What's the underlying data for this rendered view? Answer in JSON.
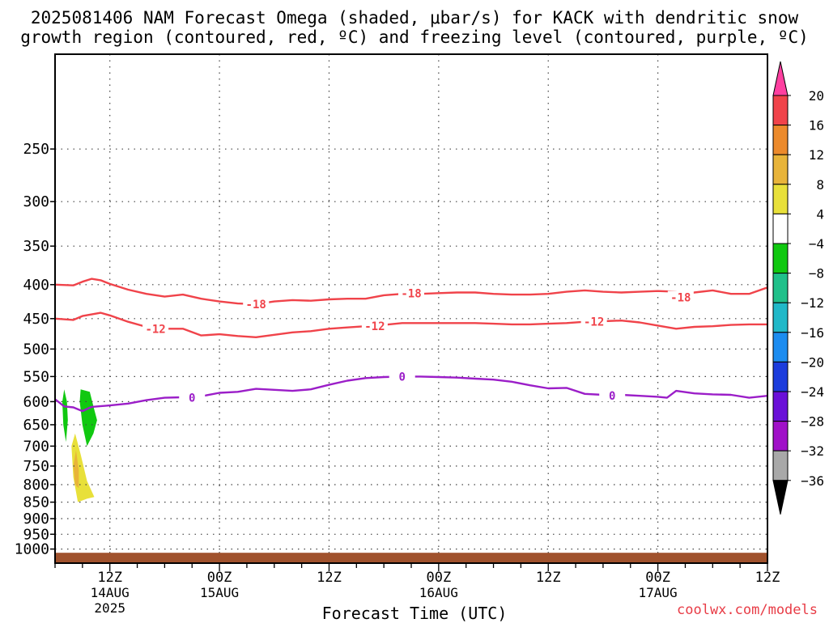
{
  "chart_data": {
    "type": "heatmap",
    "title_lines": [
      "2025081406 NAM Forecast Omega (shaded, μbar/s) for KACK with dendritic snow",
      "growth region (contoured, red, ºC) and freezing level (contoured, purple, ºC)"
    ],
    "xlabel": "Forecast Time (UTC)",
    "ylabel": "",
    "x_tick_labels": [
      {
        "line1": "12Z",
        "line2": "14AUG",
        "line3": "2025"
      },
      {
        "line1": "00Z",
        "line2": "15AUG",
        "line3": ""
      },
      {
        "line1": "12Z",
        "line2": "",
        "line3": ""
      },
      {
        "line1": "00Z",
        "line2": "16AUG",
        "line3": ""
      },
      {
        "line1": "12Z",
        "line2": "",
        "line3": ""
      },
      {
        "line1": "00Z",
        "line2": "17AUG",
        "line3": ""
      },
      {
        "line1": "12Z",
        "line2": "",
        "line3": ""
      }
    ],
    "x_range_hours": [
      6,
      84
    ],
    "x_tick_hours": [
      12,
      24,
      36,
      48,
      60,
      72,
      84
    ],
    "y_axis": {
      "type": "log",
      "reversed": true,
      "range_hPa": [
        1050,
        180
      ]
    },
    "y_tick_labels": [
      "250",
      "300",
      "350",
      "400",
      "450",
      "500",
      "550",
      "600",
      "650",
      "700",
      "750",
      "800",
      "850",
      "900",
      "950",
      "1000"
    ],
    "grid": "dotted",
    "colorbar": {
      "tick_labels": [
        "20",
        "16",
        "12",
        "8",
        "4",
        "−4",
        "−8",
        "−12",
        "−16",
        "−20",
        "−24",
        "−28",
        "−32",
        "−36"
      ],
      "colors": [
        "#ff3fa0",
        "#f0434a",
        "#ec8a2c",
        "#e8b43a",
        "#e8e03a",
        "#ffffff",
        "#10c810",
        "#20c08a",
        "#20b8c8",
        "#1c8cf0",
        "#1c3cdc",
        "#6a10d8",
        "#a010c8",
        "#a8a8a8",
        "#000000"
      ]
    },
    "contours": [
      {
        "label": "-18",
        "color": "#f0434a",
        "points": [
          [
            6,
            400
          ],
          [
            8,
            401
          ],
          [
            9,
            396
          ],
          [
            10,
            392
          ],
          [
            11,
            394
          ],
          [
            12,
            399
          ],
          [
            14,
            407
          ],
          [
            16,
            413
          ],
          [
            18,
            417
          ],
          [
            20,
            414
          ],
          [
            22,
            420
          ],
          [
            24,
            424
          ],
          [
            26,
            427
          ],
          [
            28,
            428
          ],
          [
            30,
            424
          ],
          [
            32,
            422
          ],
          [
            34,
            423
          ],
          [
            36,
            421
          ],
          [
            38,
            420
          ],
          [
            40,
            420
          ],
          [
            42,
            415
          ],
          [
            44,
            413
          ],
          [
            46,
            413
          ],
          [
            48,
            412
          ],
          [
            50,
            411
          ],
          [
            52,
            411
          ],
          [
            54,
            413
          ],
          [
            56,
            414
          ],
          [
            58,
            414
          ],
          [
            60,
            413
          ],
          [
            62,
            410
          ],
          [
            64,
            408
          ],
          [
            66,
            410
          ],
          [
            68,
            411
          ],
          [
            70,
            410
          ],
          [
            72,
            409
          ],
          [
            74,
            410
          ],
          [
            75,
            412
          ],
          [
            76,
            411
          ],
          [
            78,
            408
          ],
          [
            80,
            413
          ],
          [
            82,
            413
          ],
          [
            84,
            404
          ],
          [
            86,
            402
          ],
          [
            88,
            399
          ]
        ]
      },
      {
        "label": "-12",
        "color": "#f0434a",
        "points": [
          [
            6,
            450
          ],
          [
            8,
            452
          ],
          [
            9,
            446
          ],
          [
            11,
            441
          ],
          [
            12,
            445
          ],
          [
            14,
            455
          ],
          [
            16,
            463
          ],
          [
            18,
            466
          ],
          [
            20,
            466
          ],
          [
            22,
            477
          ],
          [
            24,
            475
          ],
          [
            26,
            478
          ],
          [
            28,
            480
          ],
          [
            30,
            476
          ],
          [
            32,
            472
          ],
          [
            34,
            470
          ],
          [
            36,
            466
          ],
          [
            38,
            464
          ],
          [
            40,
            462
          ],
          [
            42,
            460
          ],
          [
            44,
            457
          ],
          [
            46,
            457
          ],
          [
            48,
            457
          ],
          [
            50,
            457
          ],
          [
            52,
            457
          ],
          [
            54,
            458
          ],
          [
            56,
            459
          ],
          [
            58,
            459
          ],
          [
            60,
            458
          ],
          [
            62,
            457
          ],
          [
            64,
            455
          ],
          [
            66,
            454
          ],
          [
            68,
            453
          ],
          [
            70,
            456
          ],
          [
            72,
            461
          ],
          [
            74,
            466
          ],
          [
            76,
            463
          ],
          [
            78,
            462
          ],
          [
            80,
            460
          ],
          [
            82,
            459
          ],
          [
            84,
            459
          ],
          [
            86,
            457
          ],
          [
            88,
            454
          ]
        ]
      },
      {
        "label": "0",
        "color": "#9b1ec8",
        "points": [
          [
            6,
            595
          ],
          [
            7,
            610
          ],
          [
            8,
            612
          ],
          [
            9,
            620
          ],
          [
            10,
            611
          ],
          [
            12,
            608
          ],
          [
            14,
            604
          ],
          [
            16,
            597
          ],
          [
            18,
            592
          ],
          [
            20,
            591
          ],
          [
            22,
            589
          ],
          [
            24,
            582
          ],
          [
            26,
            580
          ],
          [
            28,
            574
          ],
          [
            30,
            576
          ],
          [
            32,
            578
          ],
          [
            34,
            575
          ],
          [
            36,
            566
          ],
          [
            38,
            558
          ],
          [
            40,
            553
          ],
          [
            42,
            551
          ],
          [
            44,
            550
          ],
          [
            46,
            550
          ],
          [
            48,
            551
          ],
          [
            50,
            552
          ],
          [
            52,
            554
          ],
          [
            54,
            556
          ],
          [
            56,
            560
          ],
          [
            58,
            567
          ],
          [
            60,
            573
          ],
          [
            62,
            572
          ],
          [
            64,
            584
          ],
          [
            66,
            586
          ],
          [
            68,
            586
          ],
          [
            70,
            588
          ],
          [
            72,
            590
          ],
          [
            73,
            592
          ],
          [
            74,
            578
          ],
          [
            76,
            583
          ],
          [
            78,
            585
          ],
          [
            80,
            586
          ],
          [
            82,
            592
          ],
          [
            84,
            588
          ],
          [
            86,
            591
          ],
          [
            88,
            595
          ]
        ]
      }
    ],
    "contour_label_positions": [
      {
        "label": "-18",
        "x": 28,
        "p": 428
      },
      {
        "label": "-18",
        "x": 45,
        "p": 412
      },
      {
        "label": "-18",
        "x": 74.5,
        "p": 418
      },
      {
        "label": "-12",
        "x": 17,
        "p": 466
      },
      {
        "label": "-12",
        "x": 41,
        "p": 462
      },
      {
        "label": "-12",
        "x": 65,
        "p": 455
      },
      {
        "label": "0",
        "x": 21,
        "p": 592
      },
      {
        "label": "0",
        "x": 44,
        "p": 550
      },
      {
        "label": "0",
        "x": 67,
        "p": 588
      }
    ],
    "shaded_regions": [
      {
        "value_range": "-8 to -4",
        "color": "#10c810",
        "points": [
          [
            7,
            575
          ],
          [
            7.3,
            600
          ],
          [
            7.4,
            640
          ],
          [
            7.2,
            690
          ],
          [
            6.9,
            650
          ],
          [
            6.8,
            600
          ]
        ]
      },
      {
        "value_range": "-8 to -4",
        "color": "#10c810",
        "points": [
          [
            8.8,
            575
          ],
          [
            9.8,
            580
          ],
          [
            10.2,
            610
          ],
          [
            10.6,
            640
          ],
          [
            10.2,
            670
          ],
          [
            9.5,
            700
          ],
          [
            9.0,
            650
          ],
          [
            8.7,
            600
          ]
        ]
      },
      {
        "value_range": "4 to 8",
        "color": "#e8e03a",
        "points": [
          [
            8.2,
            670
          ],
          [
            8.8,
            720
          ],
          [
            9.5,
            790
          ],
          [
            10.3,
            835
          ],
          [
            9.5,
            840
          ],
          [
            8.5,
            850
          ],
          [
            8.0,
            780
          ],
          [
            7.8,
            700
          ]
        ]
      },
      {
        "value_range": "8 to 12",
        "color": "#e8b43a",
        "points": [
          [
            8.3,
            710
          ],
          [
            8.6,
            760
          ],
          [
            8.6,
            810
          ],
          [
            8.2,
            800
          ],
          [
            8.0,
            750
          ]
        ]
      }
    ],
    "ground_pressure_hPa": 1013
  },
  "credit": "coolwx.com/models"
}
